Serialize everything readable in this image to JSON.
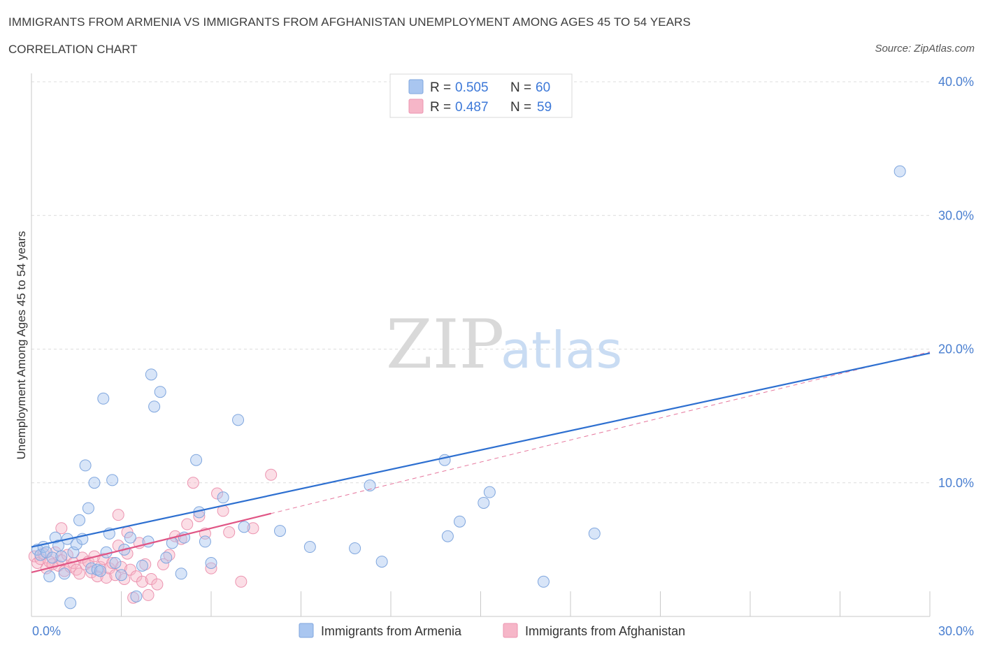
{
  "title": "IMMIGRANTS FROM ARMENIA VS IMMIGRANTS FROM AFGHANISTAN UNEMPLOYMENT AMONG AGES 45 TO 54 YEARS",
  "subtitle": "CORRELATION CHART",
  "source": "Source: ZipAtlas.com",
  "watermark": {
    "zip": "ZIP",
    "atlas": "atlas"
  },
  "colors": {
    "armenia_fill": "#a9c6f0",
    "armenia_stroke": "#7fa6de",
    "armenia_line": "#2d6fd0",
    "afghanistan_fill": "#f6b6c8",
    "afghanistan_stroke": "#ec94b0",
    "afghanistan_line": "#e05585",
    "axis_text": "#4a7fd0",
    "grid": "#dcdcdc"
  },
  "legend": {
    "rows": [
      {
        "r_label": "R =",
        "r_value": "0.505",
        "n_label": "N =",
        "n_value": "60"
      },
      {
        "r_label": "R =",
        "r_value": "0.487",
        "n_label": "N =",
        "n_value": "59"
      }
    ]
  },
  "bottom_legend": [
    "Immigrants from Armenia",
    "Immigrants from Afghanistan"
  ],
  "chart_data": {
    "type": "scatter",
    "title": "IMMIGRANTS FROM ARMENIA VS IMMIGRANTS FROM AFGHANISTAN UNEMPLOYMENT AMONG AGES 45 TO 54 YEARS",
    "xlabel": "",
    "ylabel": "Unemployment Among Ages 45 to 54 years",
    "xlim": [
      0,
      30
    ],
    "ylim": [
      0,
      40
    ],
    "x_tick_labels": [
      "0.0%",
      "30.0%"
    ],
    "y_ticks": [
      10,
      20,
      30,
      40
    ],
    "y_tick_labels": [
      "10.0%",
      "20.0%",
      "30.0%",
      "40.0%"
    ],
    "grid": true,
    "series": [
      {
        "name": "Immigrants from Armenia",
        "R": 0.505,
        "N": 60,
        "trend": {
          "x": [
            0,
            30
          ],
          "y": [
            5.2,
            19.7
          ],
          "style": "solid"
        },
        "points": [
          [
            0.2,
            5.0
          ],
          [
            0.3,
            4.6
          ],
          [
            0.4,
            5.2
          ],
          [
            0.5,
            4.8
          ],
          [
            0.6,
            3.0
          ],
          [
            0.7,
            4.4
          ],
          [
            0.8,
            5.9
          ],
          [
            0.9,
            5.3
          ],
          [
            1.0,
            4.5
          ],
          [
            1.1,
            3.2
          ],
          [
            1.2,
            5.8
          ],
          [
            1.3,
            1.0
          ],
          [
            1.4,
            4.8
          ],
          [
            1.5,
            5.4
          ],
          [
            1.6,
            7.2
          ],
          [
            1.7,
            5.8
          ],
          [
            1.8,
            11.3
          ],
          [
            1.9,
            8.1
          ],
          [
            2.0,
            3.6
          ],
          [
            2.1,
            10.0
          ],
          [
            2.2,
            3.5
          ],
          [
            2.3,
            3.4
          ],
          [
            2.4,
            16.3
          ],
          [
            2.5,
            4.8
          ],
          [
            2.6,
            6.2
          ],
          [
            2.7,
            10.2
          ],
          [
            2.8,
            4.0
          ],
          [
            3.0,
            3.1
          ],
          [
            3.1,
            5.0
          ],
          [
            3.3,
            5.9
          ],
          [
            3.5,
            1.5
          ],
          [
            3.7,
            3.8
          ],
          [
            3.9,
            5.6
          ],
          [
            4.0,
            18.1
          ],
          [
            4.1,
            15.7
          ],
          [
            4.3,
            16.8
          ],
          [
            4.5,
            4.4
          ],
          [
            4.7,
            5.5
          ],
          [
            5.0,
            3.2
          ],
          [
            5.1,
            5.9
          ],
          [
            5.5,
            11.7
          ],
          [
            5.6,
            7.8
          ],
          [
            5.8,
            5.6
          ],
          [
            6.0,
            4.0
          ],
          [
            6.4,
            8.9
          ],
          [
            6.9,
            14.7
          ],
          [
            7.1,
            6.7
          ],
          [
            8.3,
            6.4
          ],
          [
            9.3,
            5.2
          ],
          [
            10.8,
            5.1
          ],
          [
            11.3,
            9.8
          ],
          [
            11.7,
            4.1
          ],
          [
            13.8,
            11.7
          ],
          [
            13.9,
            6.0
          ],
          [
            14.3,
            7.1
          ],
          [
            15.1,
            8.5
          ],
          [
            15.3,
            9.3
          ],
          [
            17.1,
            2.6
          ],
          [
            18.8,
            6.2
          ],
          [
            29.0,
            33.3
          ]
        ]
      },
      {
        "name": "Immigrants from Afghanistan",
        "R": 0.487,
        "N": 59,
        "trend": {
          "x": [
            0,
            8.0
          ],
          "y": [
            3.3,
            7.7
          ],
          "style": "solid"
        },
        "trend_extended": {
          "x": [
            0,
            30
          ],
          "y": [
            3.3,
            19.8
          ],
          "style": "dashed"
        },
        "points": [
          [
            0.1,
            4.5
          ],
          [
            0.2,
            4.0
          ],
          [
            0.3,
            4.3
          ],
          [
            0.4,
            4.7
          ],
          [
            0.5,
            3.6
          ],
          [
            0.6,
            4.1
          ],
          [
            0.7,
            3.9
          ],
          [
            0.8,
            4.8
          ],
          [
            0.9,
            3.8
          ],
          [
            1.0,
            4.2
          ],
          [
            1.1,
            3.4
          ],
          [
            1.2,
            4.6
          ],
          [
            1.3,
            3.7
          ],
          [
            1.4,
            4.0
          ],
          [
            1.5,
            3.5
          ],
          [
            1.6,
            3.2
          ],
          [
            1.7,
            4.4
          ],
          [
            1.8,
            3.9
          ],
          [
            1.9,
            4.1
          ],
          [
            2.0,
            3.3
          ],
          [
            2.1,
            4.5
          ],
          [
            2.2,
            3.0
          ],
          [
            2.3,
            3.7
          ],
          [
            2.4,
            4.3
          ],
          [
            2.5,
            2.9
          ],
          [
            2.6,
            3.6
          ],
          [
            2.7,
            4.0
          ],
          [
            2.8,
            3.1
          ],
          [
            2.9,
            5.3
          ],
          [
            3.0,
            3.7
          ],
          [
            3.1,
            2.8
          ],
          [
            3.2,
            4.7
          ],
          [
            3.3,
            3.5
          ],
          [
            3.4,
            1.4
          ],
          [
            3.5,
            3.0
          ],
          [
            3.6,
            5.5
          ],
          [
            3.7,
            2.6
          ],
          [
            3.8,
            3.9
          ],
          [
            3.9,
            1.6
          ],
          [
            4.0,
            2.8
          ],
          [
            4.2,
            2.4
          ],
          [
            4.4,
            3.9
          ],
          [
            4.6,
            4.6
          ],
          [
            4.8,
            6.0
          ],
          [
            5.0,
            5.8
          ],
          [
            5.2,
            6.9
          ],
          [
            5.4,
            10.0
          ],
          [
            5.6,
            7.5
          ],
          [
            5.8,
            6.2
          ],
          [
            6.0,
            3.6
          ],
          [
            6.2,
            9.2
          ],
          [
            6.4,
            7.9
          ],
          [
            6.6,
            6.3
          ],
          [
            7.0,
            2.6
          ],
          [
            7.4,
            6.6
          ],
          [
            8.0,
            10.6
          ],
          [
            2.9,
            7.6
          ],
          [
            1.0,
            6.6
          ],
          [
            3.2,
            6.3
          ]
        ]
      }
    ]
  }
}
